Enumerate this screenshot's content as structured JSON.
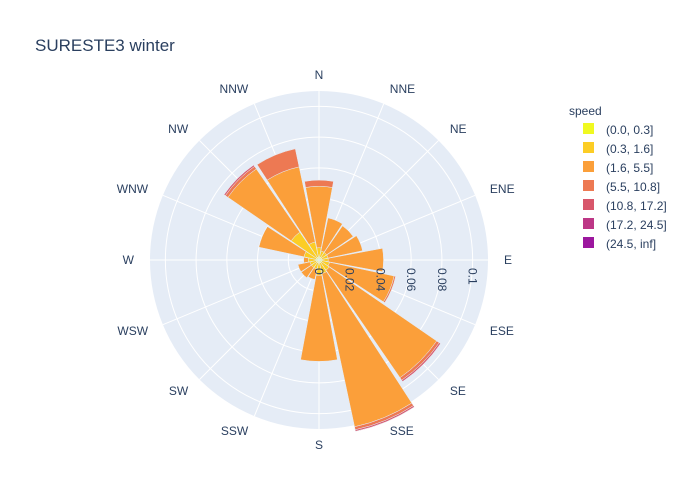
{
  "chart_data": {
    "type": "barpolar",
    "title": "SURESTE3 winter",
    "directions": [
      "N",
      "NNE",
      "NE",
      "ENE",
      "E",
      "ESE",
      "SE",
      "SSE",
      "S",
      "SSW",
      "SW",
      "WSW",
      "W",
      "WNW",
      "NW",
      "NNW"
    ],
    "radial_range": [
      0,
      0.11
    ],
    "radial_ticks": [
      0,
      0.02,
      0.04,
      0.06,
      0.08,
      0.1
    ],
    "radial_tick_labels": [
      "0",
      "0.02",
      "0.04",
      "0.06",
      "0.08",
      "0.1"
    ],
    "grid": true,
    "legend_title": "speed",
    "legend_position": "right",
    "series": [
      {
        "name": "(0.0, 0.3]",
        "color": "#f0f921",
        "values": [
          0.002,
          0.002,
          0.002,
          0.002,
          0.002,
          0.002,
          0.002,
          0.002,
          0.002,
          0.002,
          0.002,
          0.002,
          0.002,
          0.002,
          0.002,
          0.002
        ]
      },
      {
        "name": "(0.3, 1.6]",
        "color": "#fccd25",
        "values": [
          0.006,
          0.004,
          0.004,
          0.004,
          0.004,
          0.005,
          0.006,
          0.007,
          0.008,
          0.004,
          0.004,
          0.004,
          0.005,
          0.008,
          0.02,
          0.01
        ]
      },
      {
        "name": "(1.6, 5.5]",
        "color": "#fb9f3a",
        "values": [
          0.04,
          0.022,
          0.021,
          0.023,
          0.036,
          0.043,
          0.085,
          0.102,
          0.056,
          0.007,
          0.008,
          0.008,
          0.003,
          0.03,
          0.05,
          0.05
        ]
      },
      {
        "name": "(5.5, 10.8]",
        "color": "#ed7953",
        "values": [
          0.004,
          0.0,
          0.0,
          0.0,
          0.0,
          0.001,
          0.002,
          0.002,
          0.0,
          0.0,
          0.0,
          0.0,
          0.0,
          0.0,
          0.002,
          0.012
        ]
      },
      {
        "name": "(10.8, 17.2]",
        "color": "#d8576b",
        "values": [
          0,
          0,
          0,
          0,
          0,
          0,
          0.001,
          0.001,
          0,
          0,
          0,
          0,
          0,
          0,
          0.001,
          0
        ]
      },
      {
        "name": "(17.2, 24.5]",
        "color": "#bd3786",
        "values": [
          0,
          0,
          0,
          0,
          0,
          0,
          0,
          0,
          0,
          0,
          0,
          0,
          0,
          0,
          0,
          0
        ]
      },
      {
        "name": "(24.5, inf]",
        "color": "#9c179e",
        "values": [
          0,
          0,
          0,
          0,
          0,
          0,
          0,
          0,
          0,
          0,
          0,
          0,
          0,
          0,
          0,
          0
        ]
      }
    ]
  }
}
